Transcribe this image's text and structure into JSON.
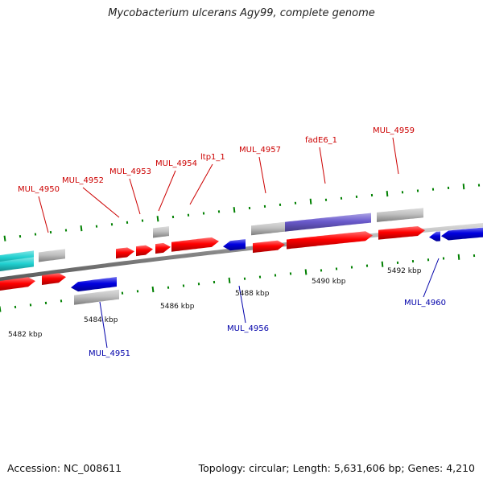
{
  "title": "Mycobacterium ulcerans Agy99, complete genome",
  "footer": {
    "accession": "Accession: NC_008611",
    "stats": "Topology: circular; Length: 5,631,606 bp; Genes: 4,210"
  },
  "colors": {
    "forward_cds": "#ff0000",
    "reverse_cds": "#0000e0",
    "gene_feature": "#c0c0c0",
    "rna_feature": "#20d0d0",
    "highlight_feature": "#6a5acd",
    "backbone": "#888888",
    "ticks": "#008000",
    "forward_label": "#cc0000",
    "reverse_label": "#0000aa"
  },
  "scale_labels": [
    "5482 kbp",
    "5484 kbp",
    "5486 kbp",
    "5488 kbp",
    "5490 kbp",
    "5492 kbp"
  ],
  "gene_labels": [
    {
      "text": "MUL_4950",
      "strand": "forward"
    },
    {
      "text": "MUL_4952",
      "strand": "forward"
    },
    {
      "text": "MUL_4953",
      "strand": "forward"
    },
    {
      "text": "MUL_4954",
      "strand": "forward"
    },
    {
      "text": "ltp1_1",
      "strand": "forward"
    },
    {
      "text": "MUL_4957",
      "strand": "forward"
    },
    {
      "text": "fadE6_1",
      "strand": "forward"
    },
    {
      "text": "MUL_4959",
      "strand": "forward"
    },
    {
      "text": "MUL_4951",
      "strand": "reverse"
    },
    {
      "text": "MUL_4956",
      "strand": "reverse"
    },
    {
      "text": "MUL_4960",
      "strand": "reverse"
    }
  ]
}
